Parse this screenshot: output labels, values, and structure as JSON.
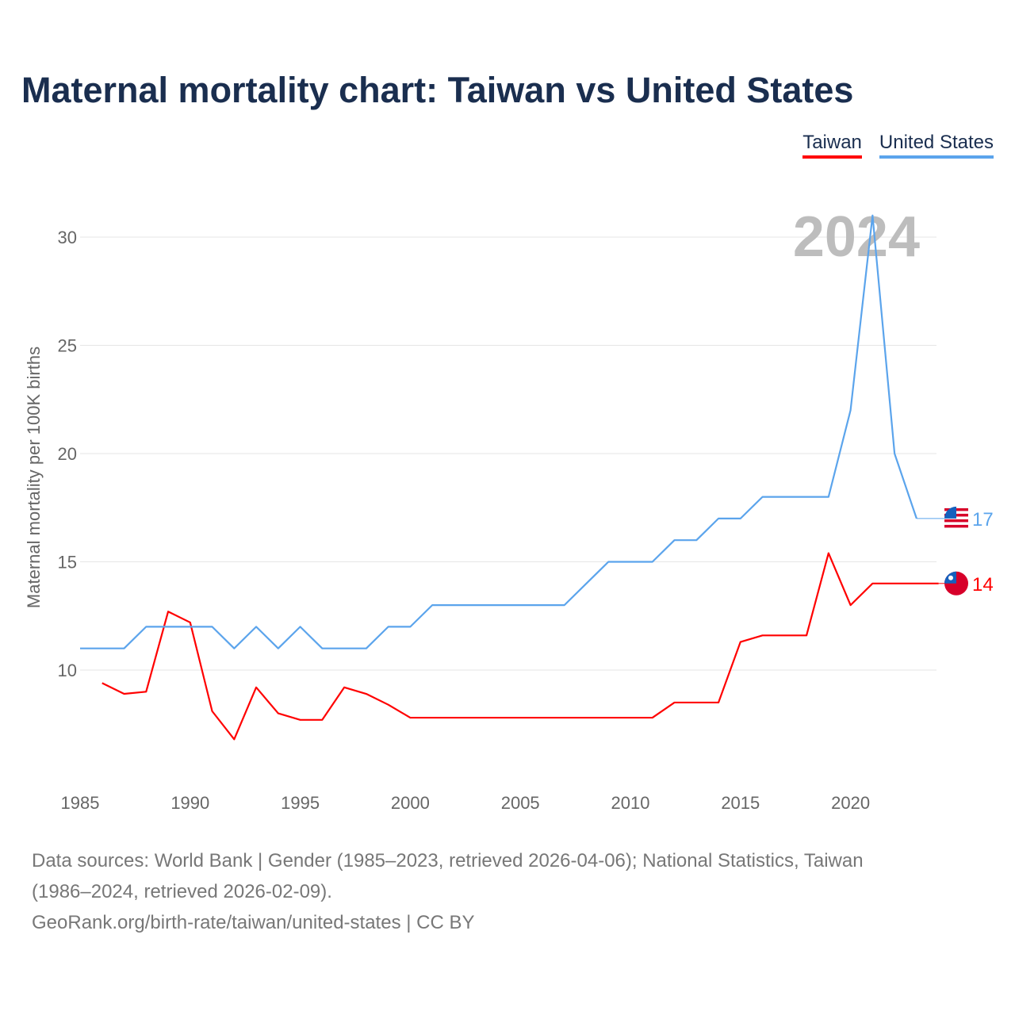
{
  "title": "Maternal mortality chart: Taiwan vs United States",
  "footer": {
    "line1": "Data sources: World Bank | Gender (1985–2023, retrieved 2026-04-06); National Statistics, Taiwan",
    "line2": "(1986–2024, retrieved 2026-02-09).",
    "line3": "GeoRank.org/birth-rate/taiwan/united-states | CC BY"
  },
  "chart_data": {
    "type": "line",
    "title": "Maternal mortality chart: Taiwan vs United States",
    "ylabel": "Maternal mortality per 100K births",
    "xlabel": "",
    "year_label": "2024",
    "xlim": [
      1985,
      2024
    ],
    "ylim": [
      5,
      31.5
    ],
    "xticks": [
      1985,
      1990,
      1995,
      2000,
      2005,
      2010,
      2015,
      2020
    ],
    "yticks": [
      10,
      15,
      20,
      25,
      30
    ],
    "legend_position": "top-right",
    "series": [
      {
        "name": "Taiwan",
        "color": "#ff0000",
        "end_label": "14",
        "x": [
          1986,
          1987,
          1988,
          1989,
          1990,
          1991,
          1992,
          1993,
          1994,
          1995,
          1996,
          1997,
          1998,
          1999,
          2000,
          2001,
          2002,
          2003,
          2004,
          2005,
          2006,
          2007,
          2008,
          2009,
          2010,
          2011,
          2012,
          2013,
          2014,
          2015,
          2016,
          2017,
          2018,
          2019,
          2020,
          2021,
          2022,
          2023,
          2024
        ],
        "values": [
          9.4,
          8.9,
          9.0,
          12.7,
          12.2,
          8.1,
          6.8,
          9.2,
          8.0,
          7.7,
          7.7,
          9.2,
          8.9,
          8.4,
          7.8,
          7.8,
          7.8,
          7.8,
          7.8,
          7.8,
          7.8,
          7.8,
          7.8,
          7.8,
          7.8,
          7.8,
          8.5,
          8.5,
          8.5,
          11.3,
          11.6,
          11.6,
          11.6,
          15.4,
          13.0,
          14,
          14,
          14,
          14
        ]
      },
      {
        "name": "United States",
        "color": "#5ba4ec",
        "end_label": "17",
        "x": [
          1985,
          1986,
          1987,
          1988,
          1989,
          1990,
          1991,
          1992,
          1993,
          1994,
          1995,
          1996,
          1997,
          1998,
          1999,
          2000,
          2001,
          2002,
          2003,
          2004,
          2005,
          2006,
          2007,
          2008,
          2009,
          2010,
          2011,
          2012,
          2013,
          2014,
          2015,
          2016,
          2017,
          2018,
          2019,
          2020,
          2021,
          2022,
          2023
        ],
        "values": [
          11,
          11,
          11,
          12,
          12,
          12,
          12,
          11,
          12,
          11,
          12,
          11,
          11,
          11,
          12,
          12,
          13,
          13,
          13,
          13,
          13,
          13,
          13,
          14,
          15,
          15,
          15,
          16,
          16,
          17,
          17,
          18,
          18,
          18,
          18,
          22,
          31,
          20,
          17
        ]
      }
    ]
  }
}
